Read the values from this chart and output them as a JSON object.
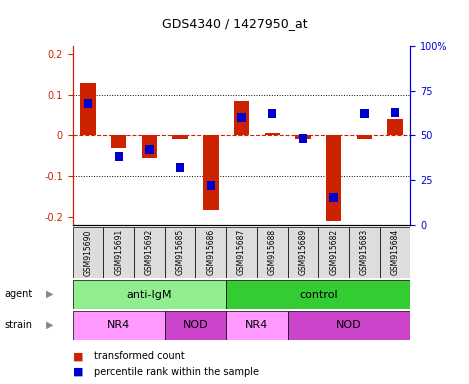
{
  "title": "GDS4340 / 1427950_at",
  "samples": [
    "GSM915690",
    "GSM915691",
    "GSM915692",
    "GSM915685",
    "GSM915686",
    "GSM915687",
    "GSM915688",
    "GSM915689",
    "GSM915682",
    "GSM915683",
    "GSM915684"
  ],
  "transformed_count": [
    0.13,
    -0.03,
    -0.055,
    -0.01,
    -0.185,
    0.085,
    0.005,
    -0.01,
    -0.21,
    -0.01,
    0.04
  ],
  "percentile_rank": [
    68,
    38,
    42,
    32,
    22,
    60,
    62,
    48,
    15,
    62,
    63
  ],
  "agent_groups": [
    {
      "label": "anti-IgM",
      "start": 0,
      "end": 5,
      "color": "#90EE90"
    },
    {
      "label": "control",
      "start": 5,
      "end": 11,
      "color": "#33CC33"
    }
  ],
  "strain_groups": [
    {
      "label": "NR4",
      "start": 0,
      "end": 3,
      "color": "#FF99FF"
    },
    {
      "label": "NOD",
      "start": 3,
      "end": 5,
      "color": "#CC44CC"
    },
    {
      "label": "NR4",
      "start": 5,
      "end": 7,
      "color": "#FF99FF"
    },
    {
      "label": "NOD",
      "start": 7,
      "end": 11,
      "color": "#CC44CC"
    }
  ],
  "ylim": [
    -0.22,
    0.22
  ],
  "yticks_left": [
    -0.2,
    -0.1,
    0.0,
    0.1,
    0.2
  ],
  "ytick_labels_left": [
    "-0.2",
    "-0.1",
    "0",
    "0.1",
    "0.2"
  ],
  "yticks_right": [
    0,
    25,
    50,
    75,
    100
  ],
  "ytick_labels_right": [
    "0",
    "25",
    "50",
    "75",
    "100%"
  ],
  "bar_color_red": "#CC2200",
  "bar_color_blue": "#0000CC",
  "zero_line_color": "#CC2200",
  "dotted_line_color": "#000000",
  "plot_bg_color": "#FFFFFF",
  "left_axis_color": "#CC2200",
  "right_axis_color": "#0000CC",
  "bar_width": 0.5,
  "blue_square_size": 0.022,
  "legend_red_label": "transformed count",
  "legend_blue_label": "percentile rank within the sample",
  "sample_box_color": "#DDDDDD",
  "left_label_color": "#888888"
}
